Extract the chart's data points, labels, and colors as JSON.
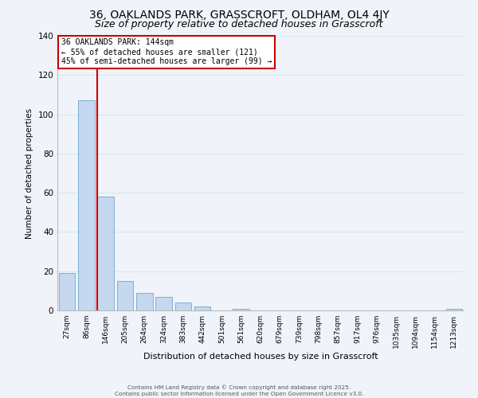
{
  "title1": "36, OAKLANDS PARK, GRASSCROFT, OLDHAM, OL4 4JY",
  "title2": "Size of property relative to detached houses in Grasscroft",
  "xlabel": "Distribution of detached houses by size in Grasscroft",
  "ylabel": "Number of detached properties",
  "bar_labels": [
    "27sqm",
    "86sqm",
    "146sqm",
    "205sqm",
    "264sqm",
    "324sqm",
    "383sqm",
    "442sqm",
    "501sqm",
    "561sqm",
    "620sqm",
    "679sqm",
    "739sqm",
    "798sqm",
    "857sqm",
    "917sqm",
    "976sqm",
    "1035sqm",
    "1094sqm",
    "1154sqm",
    "1213sqm"
  ],
  "bar_values": [
    19,
    107,
    58,
    15,
    9,
    7,
    4,
    2,
    0,
    1,
    0,
    0,
    0,
    0,
    0,
    0,
    0,
    0,
    0,
    0,
    1
  ],
  "bar_color": "#c5d8f0",
  "bar_edge_color": "#7bafd4",
  "vline_color": "#cc0000",
  "annotation_text": "36 OAKLANDS PARK: 144sqm\n← 55% of detached houses are smaller (121)\n45% of semi-detached houses are larger (99) →",
  "annotation_box_color": "#ffffff",
  "annotation_box_edge_color": "#cc0000",
  "ylim": [
    0,
    140
  ],
  "yticks": [
    0,
    20,
    40,
    60,
    80,
    100,
    120,
    140
  ],
  "grid_color": "#d8e4f0",
  "background_color": "#f0f4fa",
  "footer_line1": "Contains HM Land Registry data © Crown copyright and database right 2025.",
  "footer_line2": "Contains public sector information licensed under the Open Government Licence v3.0.",
  "title_fontsize": 10,
  "subtitle_fontsize": 9
}
